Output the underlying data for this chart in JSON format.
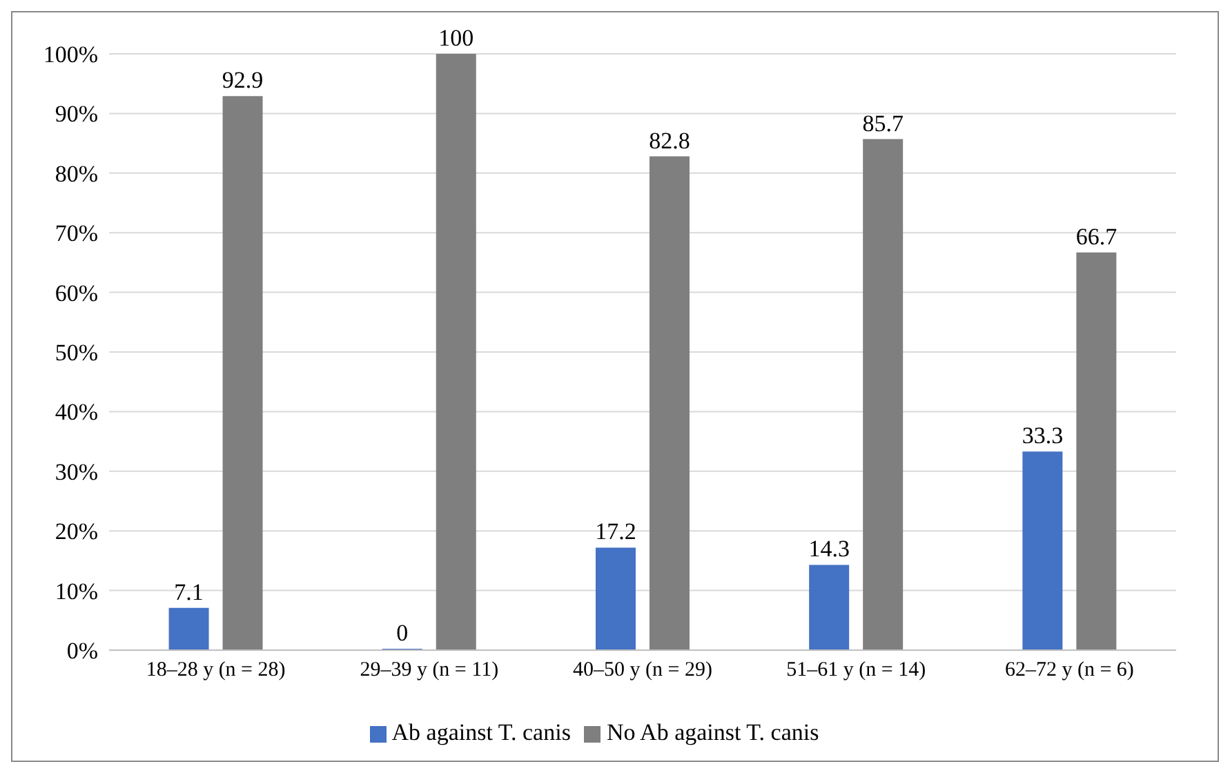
{
  "chart_data": {
    "type": "bar",
    "categories": [
      "18–28 y (n = 28)",
      "29–39 y (n = 11)",
      "40–50 y (n = 29)",
      "51–61 y (n = 14)",
      "62–72 y (n = 6)"
    ],
    "series": [
      {
        "name": "Ab against T. canis",
        "color": "#4472c4",
        "values": [
          7.1,
          0,
          17.2,
          14.3,
          33.3
        ]
      },
      {
        "name": "No Ab against T. canis",
        "color": "#7f7f7f",
        "values": [
          92.9,
          100,
          82.8,
          85.7,
          66.7
        ]
      }
    ],
    "ylim": [
      0,
      100
    ],
    "yticks": [
      {
        "value": 0,
        "label": "0%"
      },
      {
        "value": 10,
        "label": "10%"
      },
      {
        "value": 20,
        "label": "20%"
      },
      {
        "value": 30,
        "label": "30%"
      },
      {
        "value": 40,
        "label": "40%"
      },
      {
        "value": 50,
        "label": "50%"
      },
      {
        "value": 60,
        "label": "60%"
      },
      {
        "value": 70,
        "label": "70%"
      },
      {
        "value": 80,
        "label": "80%"
      },
      {
        "value": 90,
        "label": "90%"
      },
      {
        "value": 100,
        "label": "100%"
      }
    ],
    "grid": "y",
    "legend": "bottom",
    "data_labels": true
  }
}
